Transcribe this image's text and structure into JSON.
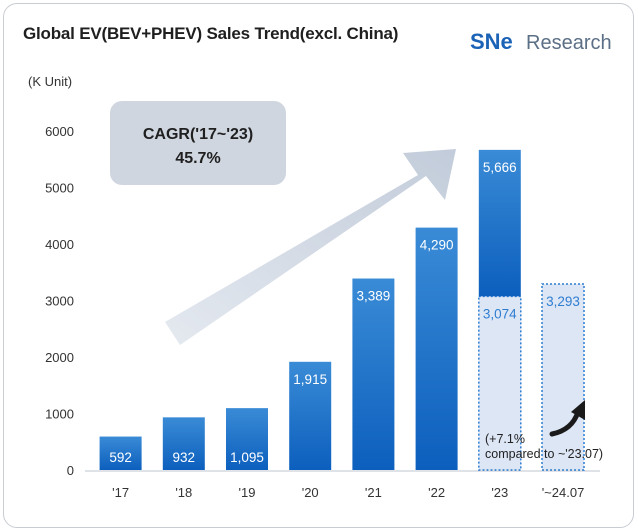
{
  "header": {
    "title": "Global EV(BEV+PHEV)  Sales Trend(excl. China)",
    "logo_mark": "SNe",
    "logo_text": "Research",
    "unit": "(K Unit)"
  },
  "colors": {
    "bar_top": "#3a8bd6",
    "bar_bottom": "#0c5fbd",
    "dashed_fill": "#dde6f5",
    "dashed_stroke": "#2e7dd1",
    "dashed_label": "#2e7dd1",
    "arrow": "#cdd6e4",
    "callout": "#cfd6df",
    "logo_mark": "#1b63b7",
    "logo_e": "#2aa0d8",
    "logo_text": "#5b6f86"
  },
  "chart_data": {
    "type": "bar",
    "categories": [
      "'17",
      "'18",
      "'19",
      "'20",
      "'21",
      "'22",
      "'23",
      "'~24.07"
    ],
    "series": [
      {
        "values": [
          592,
          932,
          1095,
          1915,
          3389,
          4290,
          5666,
          null
        ],
        "labels": [
          "592",
          "932",
          "1,095",
          "1,915",
          "3,389",
          "4,290",
          "5,666",
          ""
        ]
      },
      {
        "values": [
          null,
          null,
          null,
          null,
          null,
          null,
          3074,
          3293
        ],
        "labels": [
          "",
          "",
          "",
          "",
          "",
          "",
          "3,074",
          "3,293"
        ]
      }
    ],
    "yticks": [
      "0",
      "1000",
      "2000",
      "3000",
      "4000",
      "5000",
      "6000"
    ],
    "ylim": [
      0,
      6000
    ],
    "ylabel": "(K Unit)",
    "xlabel": "",
    "title": "Global EV(BEV+PHEV)  Sales Trend(excl. China)",
    "grid": false,
    "annotations": {
      "cagr_line1": "CAGR('17~'23)",
      "cagr_line2": "45.7%",
      "growth_line1": "(+7.1%",
      "growth_line2": "compared to ~'23.07)"
    }
  }
}
